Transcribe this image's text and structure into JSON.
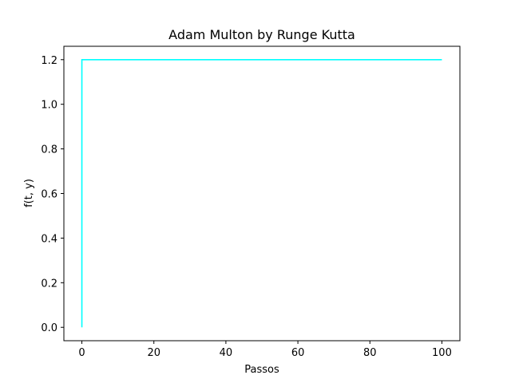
{
  "chart_data": {
    "type": "line",
    "title": "Adam Multon by Runge Kutta",
    "xlabel": "Passos",
    "ylabel": "f(t, y)",
    "xlim": [
      -5,
      105
    ],
    "ylim": [
      -0.06,
      1.26
    ],
    "xticks": [
      0,
      20,
      40,
      60,
      80,
      100
    ],
    "xtick_labels": [
      "0",
      "20",
      "40",
      "60",
      "80",
      "100"
    ],
    "yticks": [
      0.0,
      0.2,
      0.4,
      0.6,
      0.8,
      1.0,
      1.2
    ],
    "ytick_labels": [
      "0.0",
      "0.2",
      "0.4",
      "0.6",
      "0.8",
      "1.0",
      "1.2"
    ],
    "grid": false,
    "series": [
      {
        "color": "#00ffff",
        "x": [
          0,
          0,
          1,
          2,
          3,
          4,
          5,
          10,
          20,
          30,
          40,
          50,
          60,
          70,
          80,
          90,
          100
        ],
        "y": [
          0.0,
          1.2,
          1.2,
          1.2,
          1.2,
          1.2,
          1.2,
          1.2,
          1.2,
          1.2,
          1.2,
          1.2,
          1.2,
          1.2,
          1.2,
          1.2,
          1.2
        ]
      }
    ]
  }
}
